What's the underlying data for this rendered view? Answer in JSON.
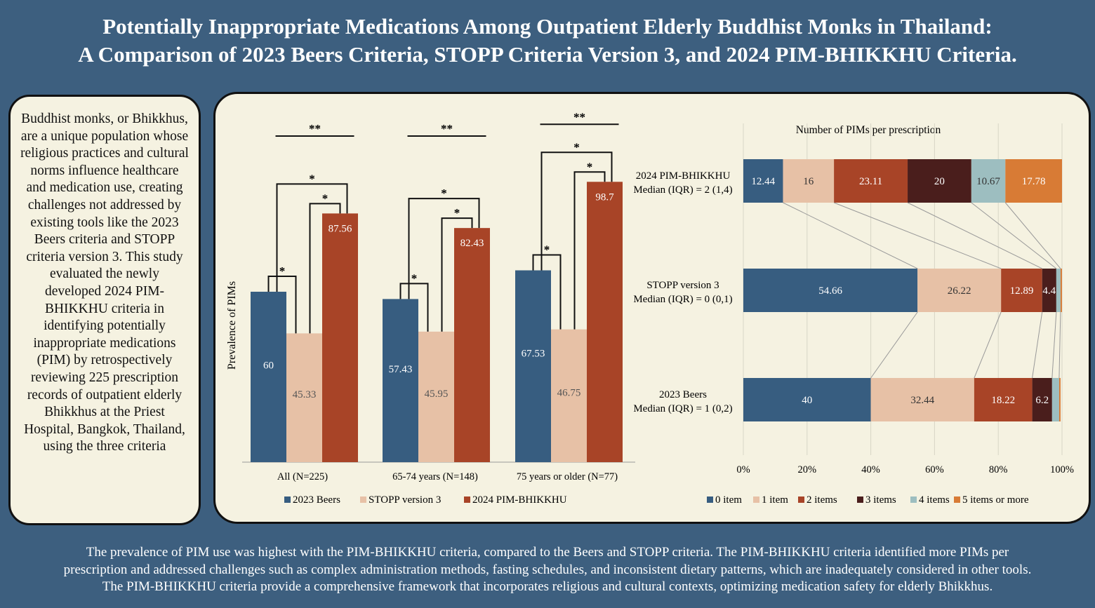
{
  "title": {
    "line1": "Potentially Inappropriate Medications Among Outpatient Elderly Buddhist Monks in Thailand:",
    "line2": "A Comparison of 2023 Beers Criteria, STOPP Criteria Version 3, and 2024 PIM-BHIKKHU Criteria."
  },
  "side_text": "Buddhist monks, or Bhikkhus, are a unique population whose religious practices and cultural norms influence healthcare and medication use, creating challenges not addressed by existing tools like the 2023 Beers criteria and STOPP criteria version 3. This study evaluated the newly developed 2024 PIM-BHIKKHU criteria in identifying potentially inappropriate medications (PIM) by retrospectively reviewing 225 prescription records of outpatient elderly Bhikkhus at the Priest Hospital, Bangkok, Thailand, using the three criteria",
  "footer": {
    "line1": "The prevalence of PIM use was highest with the PIM-BHIKKHU criteria, compared to the Beers and STOPP criteria. The PIM-BHIKKHU criteria identified more PIMs per",
    "line2": "prescription and addressed challenges such as complex administration methods, fasting schedules, and inconsistent dietary patterns, which are inadequately considered in other tools.",
    "line3": "The PIM-BHIKKHU criteria provide a comprehensive framework that incorporates religious and cultural contexts, optimizing medication safety for elderly Bhikkhus."
  },
  "chart_data": [
    {
      "type": "bar",
      "ylabel": "Prevalence of PIMs",
      "xlabel": "",
      "ylim": [
        0,
        100
      ],
      "grid": false,
      "categories": [
        "All (N=225)",
        "65-74 years (N=148)",
        "75 years or older (N=77)"
      ],
      "series": [
        {
          "name": "2023 Beers",
          "color": "#375d80",
          "values": [
            60,
            57.43,
            67.53
          ],
          "labels": [
            "60",
            "57.43",
            "67.53"
          ]
        },
        {
          "name": "STOPP version 3",
          "color": "#e7c1a6",
          "values": [
            45.33,
            45.95,
            46.75
          ],
          "labels": [
            "45.33",
            "45.95",
            "46.75"
          ]
        },
        {
          "name": "2024 PIM-BHIKKHU",
          "color": "#a84427",
          "values": [
            87.56,
            82.43,
            98.7
          ],
          "labels": [
            "87.56",
            "82.43",
            "98.7"
          ]
        }
      ],
      "significance": {
        "overall": "**",
        "pair": "*"
      },
      "legend_position": "bottom"
    },
    {
      "type": "bar",
      "orientation": "horizontal",
      "stacked": true,
      "title": "Number of PIMs per prescription",
      "xlim": [
        0,
        100
      ],
      "xticks": [
        "0%",
        "20%",
        "40%",
        "60%",
        "80%",
        "100%"
      ],
      "categories": [
        {
          "name": "2024 PIM-BHIKKHU",
          "median": "Median (IQR) = 2 (1,4)"
        },
        {
          "name": "STOPP version 3",
          "median": "Median (IQR) = 0 (0,1)"
        },
        {
          "name": "2023 Beers",
          "median": "Median (IQR) = 1 (0,2)"
        }
      ],
      "series": [
        {
          "name": "0 item",
          "color": "#375d80",
          "values": [
            12.44,
            54.66,
            40
          ],
          "labels": [
            "12.44",
            "54.66",
            "40"
          ]
        },
        {
          "name": "1 item",
          "color": "#e7c1a6",
          "values": [
            16,
            26.22,
            32.44
          ],
          "labels": [
            "16",
            "26.22",
            "32.44"
          ]
        },
        {
          "name": "2 items",
          "color": "#a84427",
          "values": [
            23.11,
            12.89,
            18.22
          ],
          "labels": [
            "23.11",
            "12.89",
            "18.22"
          ]
        },
        {
          "name": "3 items",
          "color": "#4a1e1c",
          "values": [
            20,
            4.44,
            6.22
          ],
          "labels": [
            "20",
            "4.4",
            "6.2"
          ]
        },
        {
          "name": "4 items",
          "color": "#9dbec0",
          "values": [
            10.67,
            1.33,
            2.22
          ],
          "labels": [
            "10.67",
            "",
            ""
          ]
        },
        {
          "name": "5 items or more",
          "color": "#d87b35",
          "values": [
            17.78,
            0.44,
            0.44
          ],
          "labels": [
            "17.78",
            "",
            ""
          ]
        }
      ],
      "legend_position": "bottom"
    }
  ]
}
